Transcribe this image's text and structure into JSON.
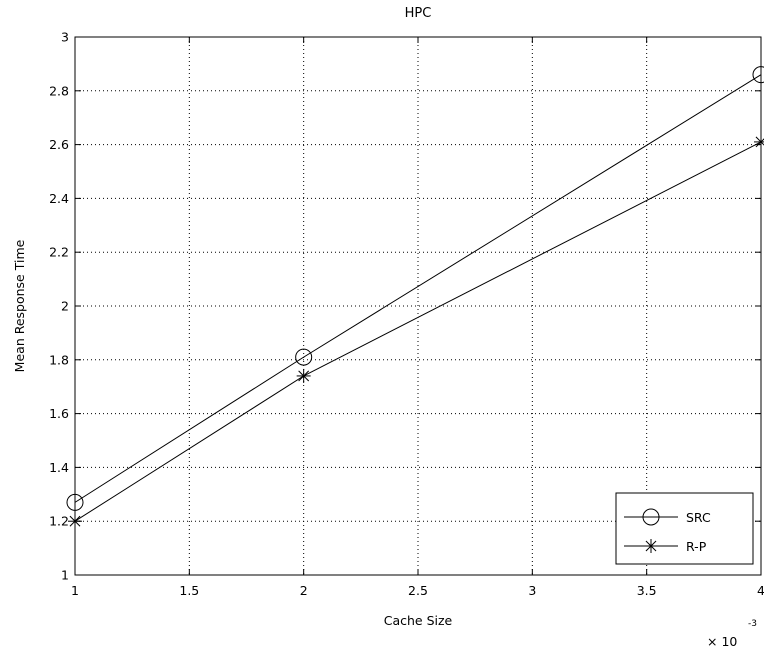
{
  "chart_data": {
    "type": "line",
    "title": "HPC",
    "xlabel": "Cache Size",
    "ylabel": "Mean Response Time",
    "x_exponent_label": "× 10",
    "x_exponent": "-3",
    "x": [
      1,
      2,
      4
    ],
    "xlim": [
      1,
      4
    ],
    "ylim": [
      1,
      3
    ],
    "xticks": [
      1,
      1.5,
      2,
      2.5,
      3,
      3.5,
      4
    ],
    "xtick_labels": [
      "1",
      "1.5",
      "2",
      "2.5",
      "3",
      "3.5",
      "4"
    ],
    "yticks": [
      1,
      1.2,
      1.4,
      1.6,
      1.8,
      2,
      2.2,
      2.4,
      2.6,
      2.8,
      3
    ],
    "ytick_labels": [
      "1",
      "1.2",
      "1.4",
      "1.6",
      "1.8",
      "2",
      "2.2",
      "2.4",
      "2.6",
      "2.8",
      "3"
    ],
    "grid": true,
    "legend_position": "bottom-right",
    "series": [
      {
        "name": "SRC",
        "marker": "circle",
        "values": [
          1.27,
          1.81,
          2.86
        ]
      },
      {
        "name": "R-P",
        "marker": "star",
        "values": [
          1.2,
          1.74,
          2.61
        ]
      }
    ]
  }
}
